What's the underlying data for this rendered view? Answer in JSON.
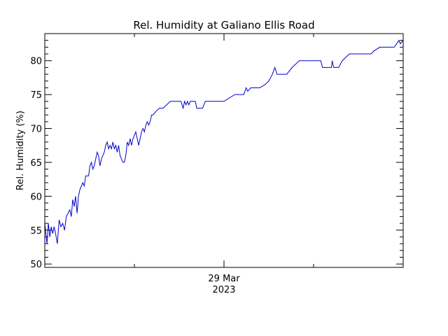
{
  "chart_data": {
    "type": "line",
    "title": "Rel. Humidity at Galiano Ellis Road",
    "ylabel": "Rel. Humidity (%)",
    "xlabel": "",
    "ylim": [
      49.5,
      84.0
    ],
    "xlim": [
      0,
      1
    ],
    "yticks": [
      {
        "value": 50,
        "label": "50"
      },
      {
        "value": 55,
        "label": "55"
      },
      {
        "value": 60,
        "label": "60"
      },
      {
        "value": 65,
        "label": "65"
      },
      {
        "value": 70,
        "label": "70"
      },
      {
        "value": 75,
        "label": "75"
      },
      {
        "value": 80,
        "label": "80"
      }
    ],
    "x_major_tick": {
      "value": 0.5,
      "label_line1": "29 Mar",
      "label_line2": "2023"
    },
    "x_minor_ticks": [
      0.25,
      0.75
    ],
    "grid": false,
    "colors": {
      "line": "#0000cc",
      "axes": "#000000"
    },
    "series": [
      {
        "name": "",
        "points": [
          [
            0.0,
            56
          ],
          [
            0.006,
            53
          ],
          [
            0.01,
            56
          ],
          [
            0.014,
            54
          ],
          [
            0.018,
            55.5
          ],
          [
            0.022,
            54.5
          ],
          [
            0.026,
            55.5
          ],
          [
            0.03,
            54.5
          ],
          [
            0.035,
            53
          ],
          [
            0.04,
            56.5
          ],
          [
            0.045,
            55.5
          ],
          [
            0.05,
            56
          ],
          [
            0.055,
            55
          ],
          [
            0.06,
            57
          ],
          [
            0.065,
            57.5
          ],
          [
            0.07,
            58
          ],
          [
            0.074,
            57
          ],
          [
            0.078,
            59.5
          ],
          [
            0.082,
            58.5
          ],
          [
            0.086,
            60
          ],
          [
            0.09,
            57.5
          ],
          [
            0.094,
            60
          ],
          [
            0.098,
            61
          ],
          [
            0.102,
            61.5
          ],
          [
            0.106,
            62
          ],
          [
            0.11,
            61.5
          ],
          [
            0.114,
            63
          ],
          [
            0.118,
            63
          ],
          [
            0.122,
            63
          ],
          [
            0.126,
            64.5
          ],
          [
            0.13,
            65
          ],
          [
            0.134,
            64
          ],
          [
            0.138,
            64.5
          ],
          [
            0.142,
            65.5
          ],
          [
            0.146,
            66.5
          ],
          [
            0.15,
            66
          ],
          [
            0.154,
            64.5
          ],
          [
            0.158,
            65.5
          ],
          [
            0.162,
            66
          ],
          [
            0.166,
            66.5
          ],
          [
            0.17,
            67.5
          ],
          [
            0.174,
            68
          ],
          [
            0.178,
            67
          ],
          [
            0.182,
            67.5
          ],
          [
            0.186,
            67
          ],
          [
            0.19,
            68
          ],
          [
            0.194,
            67
          ],
          [
            0.198,
            67.5
          ],
          [
            0.202,
            66.5
          ],
          [
            0.206,
            67.5
          ],
          [
            0.21,
            66
          ],
          [
            0.214,
            65.5
          ],
          [
            0.218,
            65
          ],
          [
            0.222,
            65
          ],
          [
            0.226,
            66
          ],
          [
            0.23,
            68
          ],
          [
            0.234,
            67.5
          ],
          [
            0.238,
            68.5
          ],
          [
            0.242,
            67.5
          ],
          [
            0.246,
            68.5
          ],
          [
            0.25,
            69
          ],
          [
            0.254,
            69.5
          ],
          [
            0.258,
            68.5
          ],
          [
            0.262,
            67.5
          ],
          [
            0.266,
            68.5
          ],
          [
            0.27,
            69.5
          ],
          [
            0.274,
            70
          ],
          [
            0.278,
            69.5
          ],
          [
            0.282,
            70.5
          ],
          [
            0.286,
            71
          ],
          [
            0.29,
            70.5
          ],
          [
            0.294,
            71
          ],
          [
            0.298,
            72
          ],
          [
            0.302,
            72
          ],
          [
            0.31,
            72.5
          ],
          [
            0.32,
            73
          ],
          [
            0.33,
            73
          ],
          [
            0.34,
            73.5
          ],
          [
            0.35,
            74
          ],
          [
            0.36,
            74
          ],
          [
            0.37,
            74
          ],
          [
            0.38,
            74
          ],
          [
            0.386,
            73
          ],
          [
            0.39,
            74
          ],
          [
            0.394,
            73.5
          ],
          [
            0.398,
            74
          ],
          [
            0.402,
            73.5
          ],
          [
            0.406,
            74
          ],
          [
            0.412,
            74
          ],
          [
            0.42,
            74
          ],
          [
            0.424,
            73
          ],
          [
            0.432,
            73
          ],
          [
            0.44,
            73
          ],
          [
            0.444,
            73.5
          ],
          [
            0.448,
            74
          ],
          [
            0.46,
            74
          ],
          [
            0.48,
            74
          ],
          [
            0.49,
            74
          ],
          [
            0.5,
            74
          ],
          [
            0.53,
            75
          ],
          [
            0.555,
            75
          ],
          [
            0.562,
            76
          ],
          [
            0.566,
            75.5
          ],
          [
            0.575,
            76
          ],
          [
            0.6,
            76
          ],
          [
            0.615,
            76.5
          ],
          [
            0.625,
            77
          ],
          [
            0.635,
            78
          ],
          [
            0.642,
            79
          ],
          [
            0.648,
            78
          ],
          [
            0.66,
            78
          ],
          [
            0.675,
            78
          ],
          [
            0.69,
            79
          ],
          [
            0.7,
            79.5
          ],
          [
            0.71,
            80
          ],
          [
            0.74,
            80
          ],
          [
            0.76,
            80
          ],
          [
            0.77,
            80
          ],
          [
            0.775,
            79
          ],
          [
            0.8,
            79
          ],
          [
            0.802,
            80
          ],
          [
            0.806,
            79
          ],
          [
            0.82,
            79
          ],
          [
            0.83,
            80
          ],
          [
            0.84,
            80.5
          ],
          [
            0.85,
            81
          ],
          [
            0.88,
            81
          ],
          [
            0.91,
            81
          ],
          [
            0.92,
            81.5
          ],
          [
            0.935,
            82
          ],
          [
            0.96,
            82
          ],
          [
            0.975,
            82
          ],
          [
            0.988,
            83
          ],
          [
            0.992,
            82.5
          ],
          [
            1.0,
            83
          ]
        ]
      }
    ]
  }
}
